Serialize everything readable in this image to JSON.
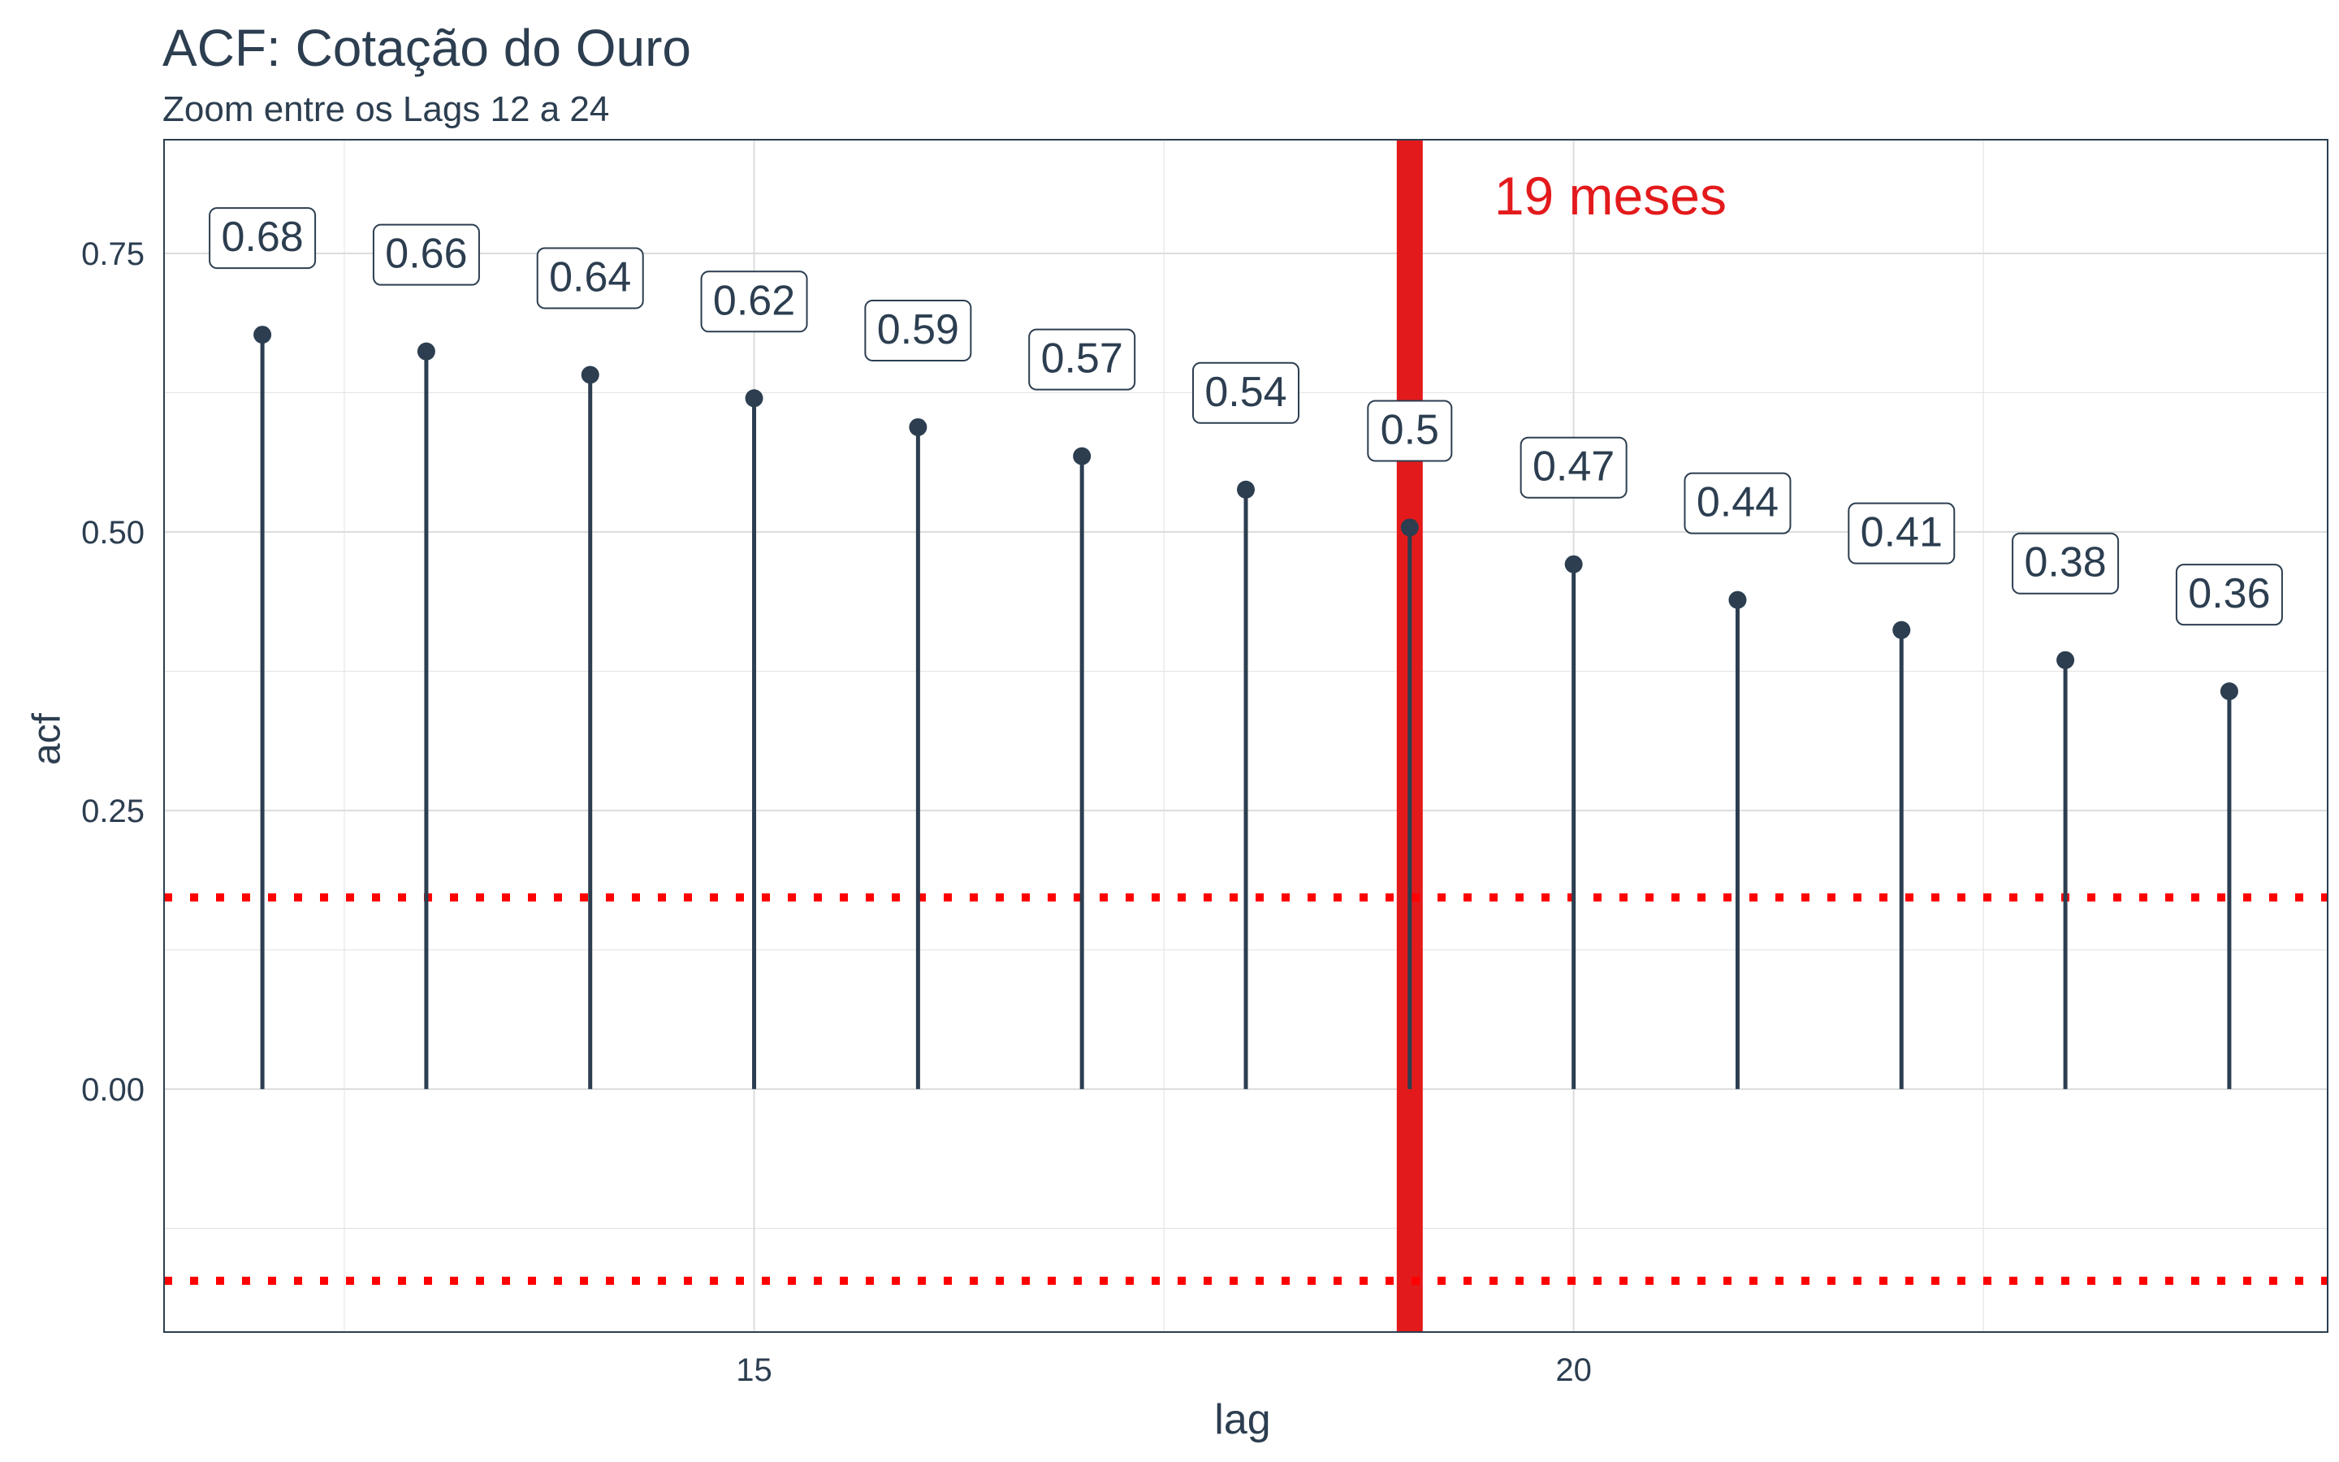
{
  "chart_data": {
    "type": "lollipop",
    "title": "ACF: Cotação do Ouro",
    "subtitle": "Zoom entre os Lags 12 a 24",
    "xlabel": "lag",
    "ylabel": "acf",
    "xlim": [
      11.4,
      24.6
    ],
    "ylim": [
      -0.218,
      0.852
    ],
    "x_ticks": [
      15,
      20
    ],
    "y_ticks": [
      0.0,
      0.25,
      0.5,
      0.75
    ],
    "y_tick_labels": [
      "0.00",
      "0.25",
      "0.50",
      "0.75"
    ],
    "grid": true,
    "lag": [
      12,
      13,
      14,
      15,
      16,
      17,
      18,
      19,
      20,
      21,
      22,
      23,
      24
    ],
    "acf": [
      0.677,
      0.662,
      0.641,
      0.62,
      0.594,
      0.568,
      0.538,
      0.504,
      0.471,
      0.439,
      0.412,
      0.385,
      0.357
    ],
    "labels": [
      "0.68",
      "0.66",
      "0.64",
      "0.62",
      "0.59",
      "0.57",
      "0.54",
      "0.5",
      "0.47",
      "0.44",
      "0.41",
      "0.38",
      "0.36"
    ],
    "confidence_bounds": [
      0.172,
      -0.172
    ],
    "highlight": {
      "lag": 19,
      "text": "19 meses",
      "color": "#e31a1c"
    },
    "colors": {
      "lollipop": "#2c3e50",
      "bounds": "#ff0000",
      "highlight": "#e31a1c",
      "grid": "#e5e5e5"
    }
  }
}
